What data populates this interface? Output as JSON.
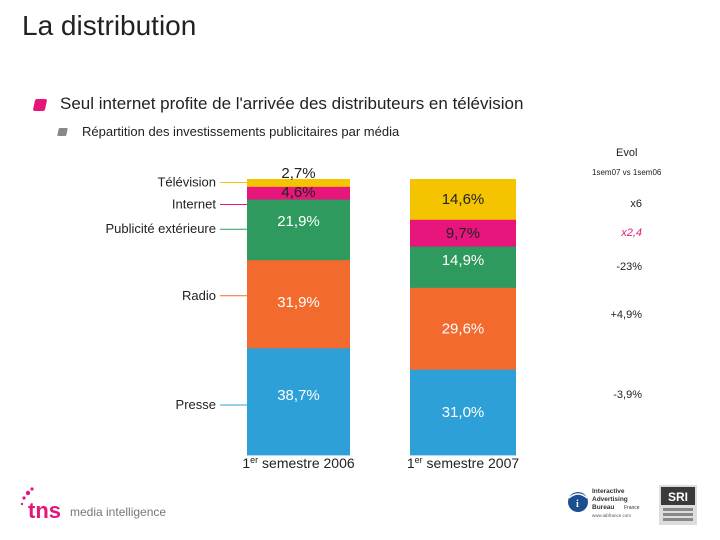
{
  "page": {
    "title": "La distribution",
    "headline": "Seul internet profite de l'arrivée des distributeurs en télévision",
    "subheadline": "Répartition des investissements publicitaires par média",
    "evol_title": "Evol",
    "evol_subtitle": "1sem07 vs 1sem06"
  },
  "colors": {
    "television": "#f5c400",
    "internet": "#e8157c",
    "publicite_exterieure": "#2e9a5e",
    "radio": "#f26a2e",
    "presse": "#2ea0d8"
  },
  "chart_data": {
    "type": "bar",
    "stacked": true,
    "normalized": true,
    "categories": [
      "1er semestre 2006",
      "1er semestre 2007"
    ],
    "category_labels": [
      {
        "prefix": "1",
        "sup": "er",
        "rest": " semestre 2006"
      },
      {
        "prefix": "1",
        "sup": "er",
        "rest": " semestre 2007"
      }
    ],
    "series": [
      {
        "name": "Presse",
        "values": [
          38.7,
          31.0
        ],
        "labels": [
          "38,7%",
          "31,0%"
        ],
        "color": "#2ea0d8",
        "label_color": "#ffffff",
        "evol": "-3,9%"
      },
      {
        "name": "Radio",
        "values": [
          31.9,
          29.6
        ],
        "labels": [
          "31,9%",
          "29,6%"
        ],
        "color": "#f26a2e",
        "label_color": "#ffffff",
        "evol": "+4,9%"
      },
      {
        "name": "Publicité extérieure",
        "values": [
          21.9,
          14.9
        ],
        "labels": [
          "21,9%",
          "14,9%"
        ],
        "color": "#2e9a5e",
        "label_color": "#ffffff",
        "evol": "-23%"
      },
      {
        "name": "Internet",
        "values": [
          4.6,
          9.7
        ],
        "labels": [
          "4,6%",
          "9,7%"
        ],
        "color": "#e8157c",
        "label_color": "#222222",
        "evol": "x2,4"
      },
      {
        "name": "Télévision",
        "values": [
          2.7,
          14.6
        ],
        "labels": [
          "2,7%",
          "14,6%"
        ],
        "color": "#f5c400",
        "label_color": "#222222",
        "evol": "x6"
      }
    ],
    "ylim": [
      0,
      100
    ]
  },
  "footer": {
    "tns_text": "tns",
    "mi_text": "media intelligence",
    "iab_lines": [
      "Interactive",
      "Advertising",
      "Bureau",
      "France"
    ],
    "iab_url": "www.iabfrance.com",
    "sri_text": "SRI"
  }
}
